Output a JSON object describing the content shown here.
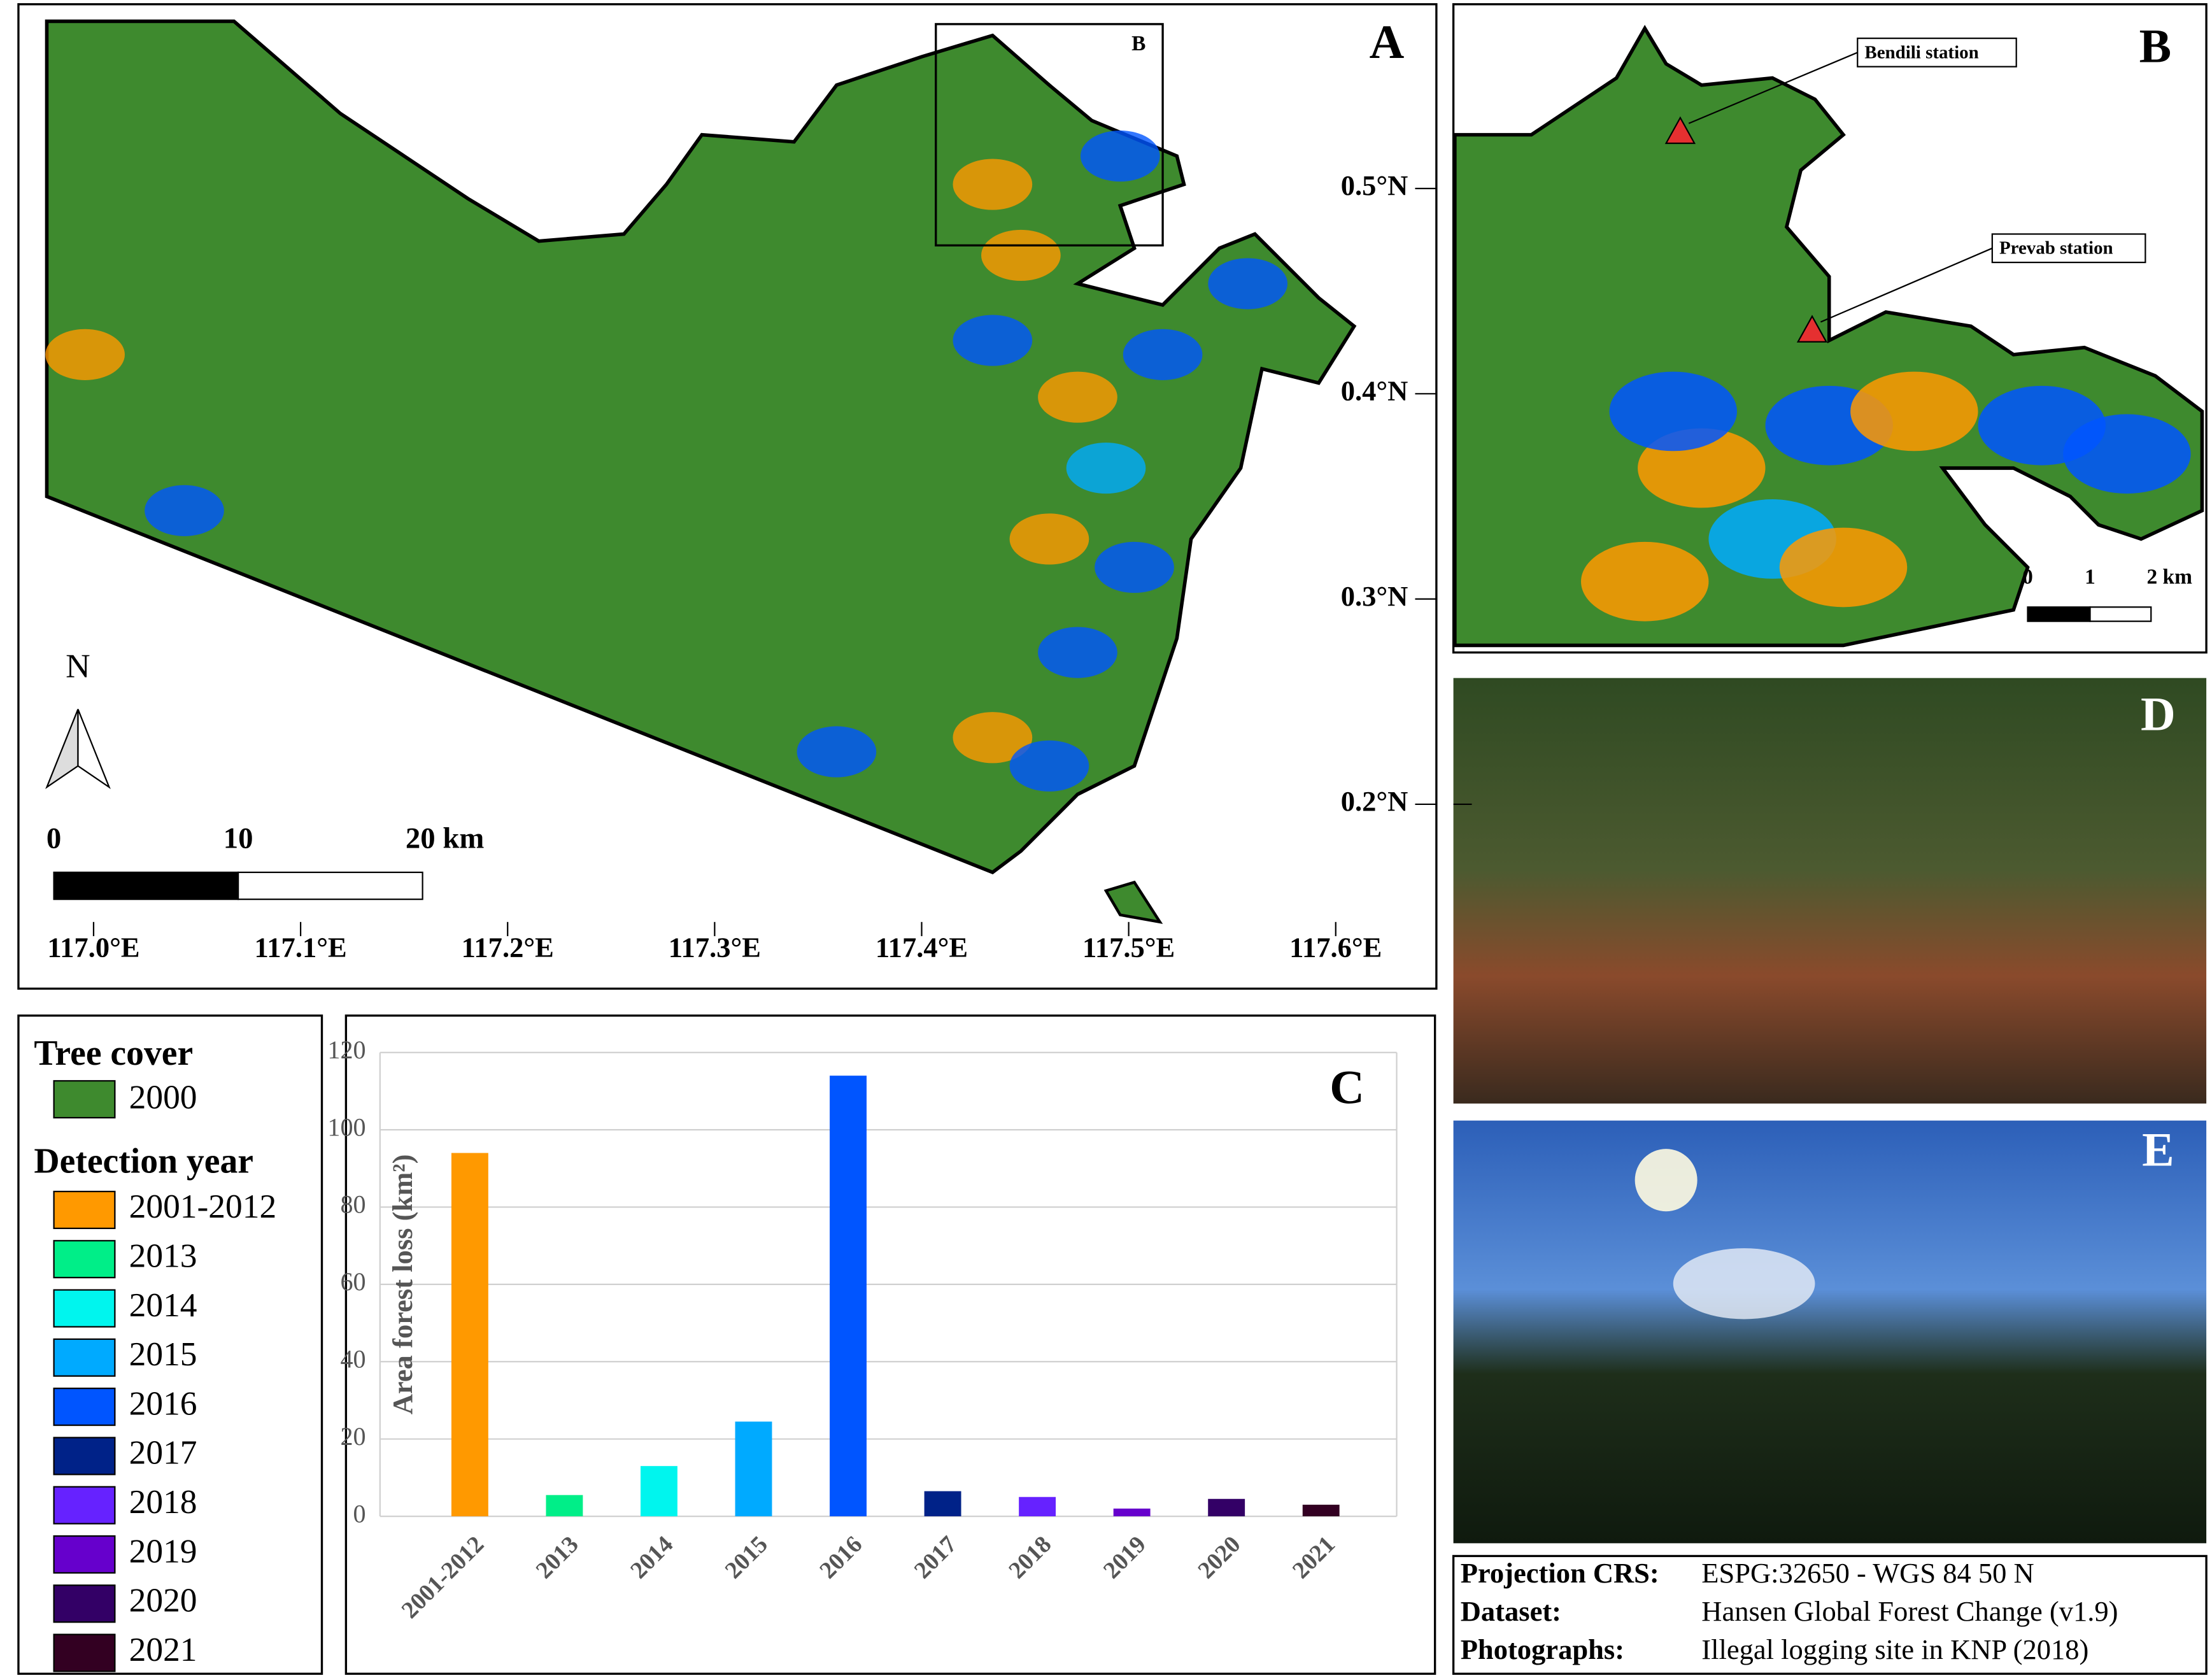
{
  "chart_data": {
    "type": "bar",
    "panel": "C",
    "y_label": "Area forest loss (km²)",
    "categories": [
      "2001-2012",
      "2013",
      "2014",
      "2015",
      "2016",
      "2017",
      "2018",
      "2019",
      "2020",
      "2021"
    ],
    "values": [
      94,
      5.5,
      13,
      24.5,
      114,
      6.5,
      5,
      2,
      4.5,
      3
    ],
    "colors": [
      "#ff9900",
      "#00ee88",
      "#00f5ee",
      "#00aaff",
      "#0055ff",
      "#002288",
      "#6622ff",
      "#6600cc",
      "#330066",
      "#330022"
    ],
    "ylim": [
      0,
      120
    ],
    "yticks": [
      0,
      20,
      40,
      60,
      80,
      100,
      120
    ],
    "grid": true
  },
  "map_a": {
    "panel": "A",
    "inset_label": "B",
    "north": "N",
    "scale_labels": [
      "0",
      "10",
      "20 km"
    ],
    "tree_color": "#3e8a2e",
    "lon_ticks": [
      {
        "value": 117.0,
        "label": "117.0°E"
      },
      {
        "value": 117.1,
        "label": "117.1°E"
      },
      {
        "value": 117.2,
        "label": "117.2°E"
      },
      {
        "value": 117.3,
        "label": "117.3°E"
      },
      {
        "value": 117.4,
        "label": "117.4°E"
      },
      {
        "value": 117.5,
        "label": "117.5°E"
      },
      {
        "value": 117.6,
        "label": "117.6°E"
      }
    ],
    "lat_ticks": [
      {
        "value": 0.2,
        "label": "0.2°N"
      },
      {
        "value": 0.3,
        "label": "0.3°N"
      },
      {
        "value": 0.4,
        "label": "0.4°N"
      },
      {
        "value": 0.5,
        "label": "0.5°N"
      }
    ]
  },
  "map_b": {
    "panel": "B",
    "stations": [
      "Bendili station",
      "Prevab station"
    ],
    "scale_labels": [
      "0",
      "1",
      "2 km"
    ]
  },
  "photos": {
    "panel_d": "D",
    "panel_e": "E"
  },
  "legend": {
    "tree_title": "Tree cover",
    "tree_year": "2000",
    "detection_title": "Detection year"
  },
  "info": {
    "rows": [
      [
        "Projection CRS:",
        "ESPG:32650 - WGS 84 50 N"
      ],
      [
        "Dataset:",
        "Hansen Global Forest Change (v1.9)"
      ],
      [
        "Photographs:",
        "Illegal logging site in KNP (2018)"
      ]
    ]
  }
}
